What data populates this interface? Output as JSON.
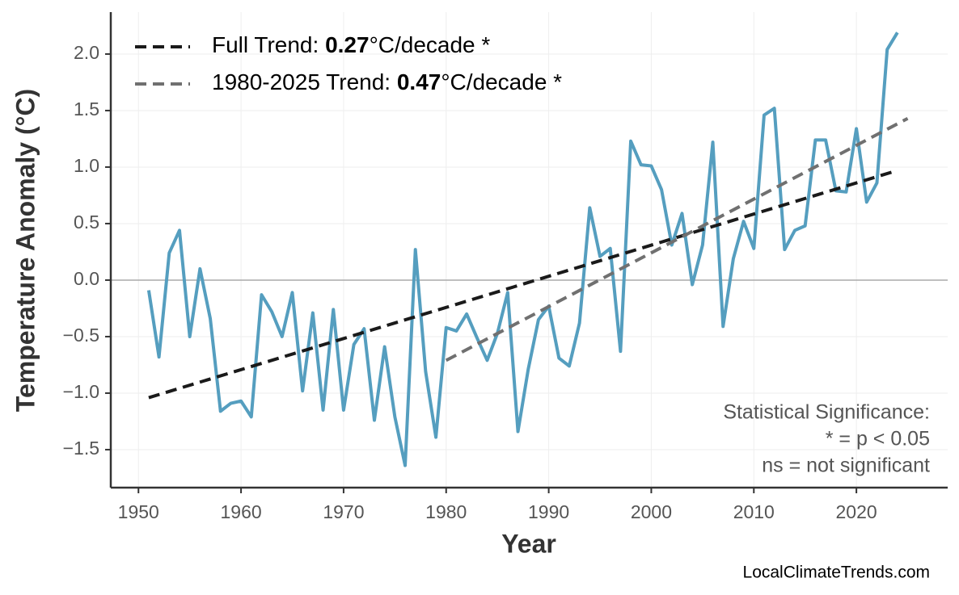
{
  "chart_data": {
    "type": "line",
    "x_label": "Year",
    "y_label": "Temperature Anomaly (°C)",
    "x": [
      1951,
      1952,
      1953,
      1954,
      1955,
      1956,
      1957,
      1958,
      1959,
      1960,
      1961,
      1962,
      1963,
      1964,
      1965,
      1966,
      1967,
      1968,
      1969,
      1970,
      1971,
      1972,
      1973,
      1974,
      1975,
      1976,
      1977,
      1978,
      1979,
      1980,
      1981,
      1982,
      1983,
      1984,
      1985,
      1986,
      1987,
      1988,
      1989,
      1990,
      1991,
      1992,
      1993,
      1994,
      1995,
      1996,
      1997,
      1998,
      1999,
      2000,
      2001,
      2002,
      2003,
      2004,
      2005,
      2006,
      2007,
      2008,
      2009,
      2010,
      2011,
      2012,
      2013,
      2014,
      2015,
      2016,
      2017,
      2018,
      2019,
      2020,
      2021,
      2022,
      2023,
      2024
    ],
    "values": [
      -0.09,
      -0.68,
      0.24,
      0.44,
      -0.5,
      0.1,
      -0.34,
      -1.16,
      -1.09,
      -1.07,
      -1.21,
      -0.13,
      -0.28,
      -0.5,
      -0.11,
      -0.98,
      -0.29,
      -1.15,
      -0.26,
      -1.15,
      -0.57,
      -0.43,
      -1.24,
      -0.59,
      -1.21,
      -1.64,
      0.27,
      -0.81,
      -1.39,
      -0.42,
      -0.45,
      -0.3,
      -0.51,
      -0.71,
      -0.47,
      -0.11,
      -1.34,
      -0.79,
      -0.35,
      -0.23,
      -0.69,
      -0.76,
      -0.38,
      0.64,
      0.21,
      0.28,
      -0.63,
      1.23,
      1.02,
      1.01,
      0.8,
      0.31,
      0.59,
      -0.04,
      0.31,
      1.22,
      -0.41,
      0.19,
      0.52,
      0.28,
      1.46,
      1.52,
      0.27,
      0.44,
      0.48,
      1.24,
      1.24,
      0.79,
      0.78,
      1.34,
      0.69,
      0.86,
      2.04,
      2.19
    ],
    "color": "#559ebf",
    "trend_lines": [
      {
        "name": "Full Trend: 0.27°C/decade *",
        "color": "#1a1a1a",
        "x": [
          1951,
          2024
        ],
        "values": [
          -1.04,
          0.97
        ]
      },
      {
        "name": "1980-2025 Trend: 0.47°C/decade *",
        "color": "#707070",
        "x": [
          1980,
          2025
        ],
        "values": [
          -0.71,
          1.43
        ]
      }
    ],
    "hline": 0,
    "xlim": [
      1947.3,
      2028.9
    ],
    "ylim": [
      -1.836,
      2.371
    ],
    "xticks": [
      1950,
      1960,
      1970,
      1980,
      1990,
      2000,
      2010,
      2020
    ],
    "yticks": [
      {
        "value": -1.5,
        "label": "−1.5"
      },
      {
        "value": -1,
        "label": "−1.0"
      },
      {
        "value": -0.5,
        "label": "−0.5"
      },
      {
        "value": 0,
        "label": "0.0"
      },
      0.5,
      {
        "value": 1,
        "label": "1.0"
      },
      1.5,
      {
        "value": 2,
        "label": "2.0"
      }
    ],
    "grid": true,
    "legend": "upper left",
    "annotation": [
      "Statistical Significance:",
      "* = p < 0.05",
      "ns = not significant"
    ],
    "source": "LocalClimateTrends.com"
  }
}
